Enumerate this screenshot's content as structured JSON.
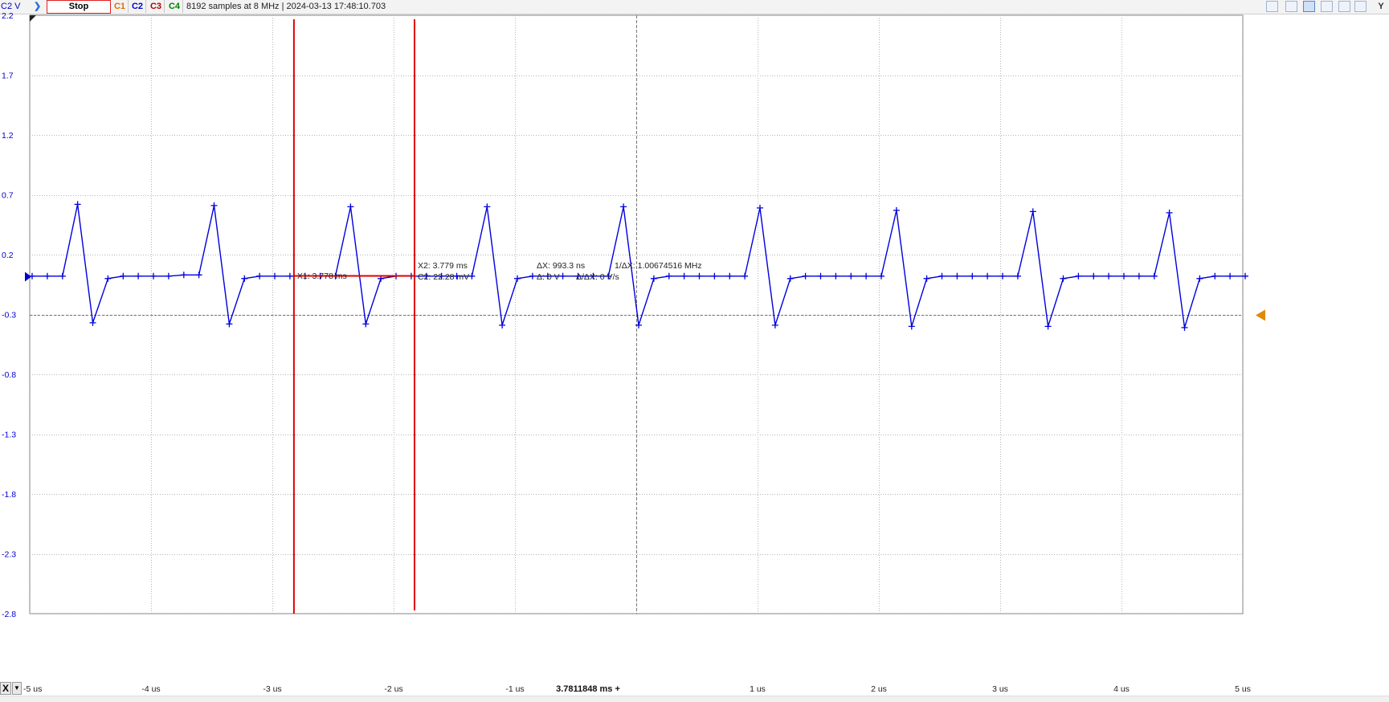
{
  "toolbar": {
    "channel_label": "C2 V",
    "stop_label": "Stop",
    "channels": [
      {
        "label": "C1",
        "color": "#e07000"
      },
      {
        "label": "C2",
        "color": "#0000cc"
      },
      {
        "label": "C3",
        "color": "#b00000"
      },
      {
        "label": "C4",
        "color": "#008000"
      }
    ],
    "status": "8192 samples at 8 MHz | 2024-03-13 17:48:10.703",
    "right_icons": [
      "zoom-in-icon",
      "zoom-cursor-icon",
      "zoom-x-icon",
      "zoom-y-icon",
      "magnifier-icon",
      "settings-icon"
    ],
    "y_label": "Y"
  },
  "x_axis": {
    "label": "X",
    "center_label": "3.7811848 ms +"
  },
  "cursors": {
    "x1_label": "X1: 3.778 ms",
    "x2_label": "X2: 3.779 ms",
    "c2_label": "C2: 22.28 mV",
    "dx_label": "ΔX: 993.3 ns",
    "inv_dx_label": "1/ΔX: 1.00674516 MHz",
    "dy_label": "Δ: 0 V",
    "slope_label": "Δ/ΔX: 0 V/s",
    "x1": -2.822,
    "x2": -1.828,
    "level": 0.0223,
    "color": "#e00000"
  },
  "chart_data": {
    "type": "line",
    "title": "",
    "xlabel": "",
    "ylabel": "",
    "xlim": [
      -5,
      5
    ],
    "ylim": [
      -2.8,
      2.2
    ],
    "x_ticks": [
      -5,
      -4,
      -3,
      -2,
      -1,
      1,
      2,
      3,
      4,
      5
    ],
    "x_tick_labels": [
      "-5 us",
      "-4 us",
      "-3 us",
      "-2 us",
      "-1 us",
      "1 us",
      "2 us",
      "3 us",
      "4 us",
      "5 us"
    ],
    "y_ticks": [
      2.2,
      1.7,
      1.2,
      0.7,
      0.2,
      -0.3,
      -0.8,
      -1.3,
      -1.8,
      -2.3,
      -2.8
    ],
    "y_tick_labels": [
      "2.2",
      "1.7",
      "1.2",
      "0.7",
      "0.2",
      "-0.3",
      "-0.8",
      "-1.3",
      "-1.8",
      "-2.3",
      "-2.8"
    ],
    "grid": true,
    "trigger_level": -0.3,
    "series": [
      {
        "name": "C2",
        "color": "#0000dd",
        "x": [
          -4.98,
          -4.855,
          -4.73,
          -4.605,
          -4.48,
          -4.355,
          -4.23,
          -4.105,
          -3.98,
          -3.855,
          -3.73,
          -3.605,
          -3.48,
          -3.355,
          -3.23,
          -3.105,
          -2.98,
          -2.855,
          -2.73,
          -2.605,
          -2.48,
          -2.355,
          -2.23,
          -2.105,
          -1.98,
          -1.855,
          -1.73,
          -1.605,
          -1.48,
          -1.355,
          -1.23,
          -1.105,
          -0.98,
          -0.855,
          -0.73,
          -0.605,
          -0.48,
          -0.355,
          -0.23,
          -0.105,
          0.02,
          0.145,
          0.27,
          0.395,
          0.52,
          0.645,
          0.77,
          0.895,
          1.02,
          1.145,
          1.27,
          1.395,
          1.52,
          1.645,
          1.77,
          1.895,
          2.02,
          2.145,
          2.27,
          2.395,
          2.52,
          2.645,
          2.77,
          2.895,
          3.02,
          3.145,
          3.27,
          3.395,
          3.52,
          3.645,
          3.77,
          3.895,
          4.02,
          4.145,
          4.27,
          4.395,
          4.52,
          4.645,
          4.77,
          4.895,
          5.02
        ],
        "y": [
          0.02,
          0.02,
          0.02,
          0.62,
          -0.37,
          0.0,
          0.02,
          0.02,
          0.02,
          0.02,
          0.03,
          0.03,
          0.61,
          -0.38,
          0.0,
          0.02,
          0.02,
          0.02,
          0.02,
          0.02,
          0.02,
          0.6,
          -0.38,
          0.0,
          0.02,
          0.02,
          0.02,
          0.02,
          0.02,
          0.02,
          0.6,
          -0.39,
          0.0,
          0.02,
          0.02,
          0.02,
          0.02,
          0.02,
          0.02,
          0.6,
          -0.39,
          0.0,
          0.02,
          0.02,
          0.02,
          0.02,
          0.02,
          0.02,
          0.59,
          -0.39,
          0.0,
          0.02,
          0.02,
          0.02,
          0.02,
          0.02,
          0.02,
          0.57,
          -0.4,
          0.0,
          0.02,
          0.02,
          0.02,
          0.02,
          0.02,
          0.02,
          0.56,
          -0.4,
          0.0,
          0.02,
          0.02,
          0.02,
          0.02,
          0.02,
          0.02,
          0.55,
          -0.41,
          0.0,
          0.02,
          0.02,
          0.02
        ]
      }
    ]
  }
}
